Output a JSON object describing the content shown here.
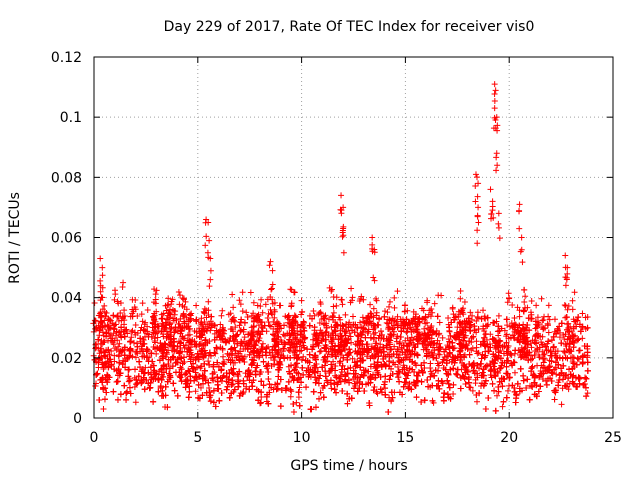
{
  "chart_data": {
    "type": "scatter",
    "title": "Day 229 of 2017, Rate Of TEC Index for receiver vis0",
    "xlabel": "GPS time / hours",
    "ylabel": "ROTI / TECUs",
    "xlim": [
      0,
      25
    ],
    "ylim": [
      0,
      0.12
    ],
    "grid": true,
    "marker": "+",
    "marker_color": "#ff0000",
    "x_ticks": [
      {
        "value": 0,
        "label": "0"
      },
      {
        "value": 5,
        "label": "5"
      },
      {
        "value": 10,
        "label": "10"
      },
      {
        "value": 15,
        "label": "15"
      },
      {
        "value": 20,
        "label": "20"
      },
      {
        "value": 25,
        "label": "25"
      }
    ],
    "y_ticks": [
      {
        "value": 0,
        "label": "0"
      },
      {
        "value": 0.02,
        "label": "0.02"
      },
      {
        "value": 0.04,
        "label": "0.04"
      },
      {
        "value": 0.06,
        "label": "0.06"
      },
      {
        "value": 0.08,
        "label": "0.08"
      },
      {
        "value": 0.1,
        "label": "0.1"
      },
      {
        "value": 0.12,
        "label": "0.12"
      }
    ],
    "data_range": {
      "x": [
        0,
        23.8
      ],
      "y": [
        0.002,
        0.112
      ]
    },
    "notable_points": [
      {
        "x": 0.3,
        "y": 0.053
      },
      {
        "x": 0.4,
        "y": 0.05
      },
      {
        "x": 1.4,
        "y": 0.045
      },
      {
        "x": 5.4,
        "y": 0.066
      },
      {
        "x": 5.5,
        "y": 0.065
      },
      {
        "x": 5.6,
        "y": 0.053
      },
      {
        "x": 8.5,
        "y": 0.052
      },
      {
        "x": 8.6,
        "y": 0.049
      },
      {
        "x": 11.9,
        "y": 0.074
      },
      {
        "x": 12.0,
        "y": 0.07
      },
      {
        "x": 12.0,
        "y": 0.063
      },
      {
        "x": 13.4,
        "y": 0.06
      },
      {
        "x": 13.5,
        "y": 0.056
      },
      {
        "x": 18.4,
        "y": 0.081
      },
      {
        "x": 18.5,
        "y": 0.078
      },
      {
        "x": 18.5,
        "y": 0.07
      },
      {
        "x": 19.1,
        "y": 0.076
      },
      {
        "x": 19.2,
        "y": 0.072
      },
      {
        "x": 19.3,
        "y": 0.111
      },
      {
        "x": 19.3,
        "y": 0.103
      },
      {
        "x": 19.4,
        "y": 0.1
      },
      {
        "x": 19.4,
        "y": 0.088
      },
      {
        "x": 19.5,
        "y": 0.068
      },
      {
        "x": 20.5,
        "y": 0.071
      },
      {
        "x": 20.6,
        "y": 0.06
      },
      {
        "x": 22.7,
        "y": 0.054
      },
      {
        "x": 22.8,
        "y": 0.05
      }
    ]
  }
}
